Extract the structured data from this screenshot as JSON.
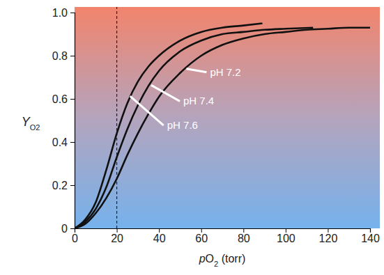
{
  "chart_data": {
    "type": "line",
    "xlabel": "pO2 (torr)",
    "ylabel": "YO2",
    "xlim": [
      0,
      140
    ],
    "ylim": [
      0,
      1
    ],
    "xticks": [
      0,
      20,
      40,
      60,
      80,
      100,
      120,
      140
    ],
    "yticks": [
      0,
      0.2,
      0.4,
      0.6,
      0.8,
      {
        "value": 1,
        "label": "1.0"
      }
    ],
    "vline": 20,
    "grid": false,
    "series": [
      {
        "name": "pH 7.6",
        "color": "#111111",
        "x": [
          0,
          5,
          10,
          15,
          20,
          25,
          30,
          35,
          40,
          50,
          60,
          70,
          80,
          89
        ],
        "values": [
          0,
          0.04,
          0.12,
          0.27,
          0.44,
          0.58,
          0.68,
          0.75,
          0.8,
          0.87,
          0.91,
          0.93,
          0.94,
          0.95
        ]
      },
      {
        "name": "pH 7.4",
        "color": "#111111",
        "x": [
          0,
          5,
          10,
          15,
          20,
          25,
          30,
          35,
          40,
          50,
          60,
          70,
          80,
          90,
          100,
          113
        ],
        "values": [
          0,
          0.03,
          0.09,
          0.19,
          0.33,
          0.46,
          0.57,
          0.66,
          0.73,
          0.82,
          0.87,
          0.9,
          0.91,
          0.92,
          0.925,
          0.93
        ]
      },
      {
        "name": "pH 7.2",
        "color": "#111111",
        "x": [
          0,
          5,
          10,
          15,
          20,
          25,
          30,
          35,
          40,
          50,
          60,
          70,
          80,
          90,
          100,
          110,
          120,
          130,
          140
        ],
        "values": [
          0,
          0.02,
          0.07,
          0.14,
          0.23,
          0.34,
          0.44,
          0.53,
          0.61,
          0.72,
          0.8,
          0.85,
          0.88,
          0.9,
          0.91,
          0.92,
          0.925,
          0.93,
          0.93
        ]
      }
    ]
  }
}
